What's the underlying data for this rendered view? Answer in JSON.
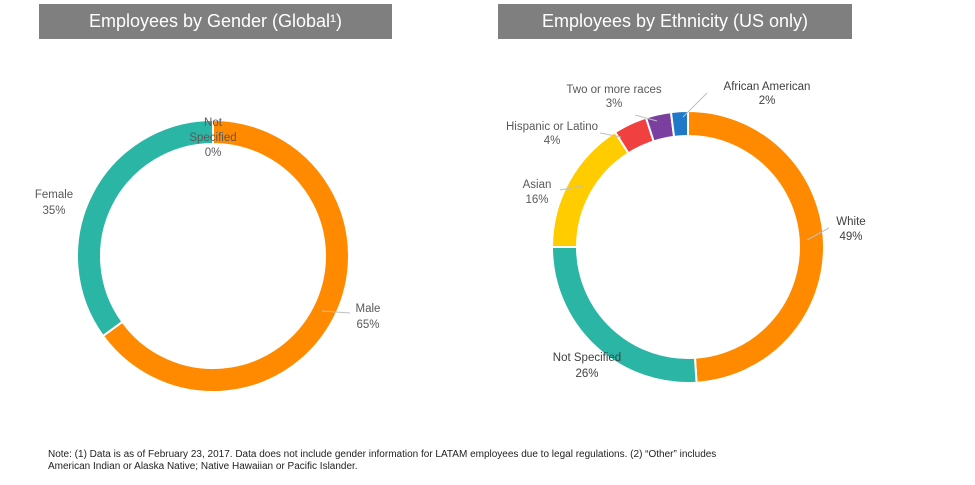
{
  "chart_data": [
    {
      "type": "pie",
      "title": "Employees by Gender (Global¹)",
      "slices": [
        {
          "label": "Not Specified",
          "value": 0,
          "pct_label": "0%",
          "color": "#2ab5a5"
        },
        {
          "label": "Male",
          "value": 65,
          "pct_label": "65%",
          "color": "#ff8a00"
        },
        {
          "label": "Female",
          "value": 35,
          "pct_label": "35%",
          "color": "#2ab5a5"
        }
      ]
    },
    {
      "type": "pie",
      "title": "Employees by Ethnicity (US only)",
      "slices": [
        {
          "label": "White",
          "value": 49,
          "pct_label": "49%",
          "color": "#ff8a00"
        },
        {
          "label": "Not Specified",
          "value": 26,
          "pct_label": "26%",
          "color": "#2ab5a5"
        },
        {
          "label": "Asian",
          "value": 16,
          "pct_label": "16%",
          "color": "#ffcc00"
        },
        {
          "label": "Hispanic or Latino",
          "value": 4,
          "pct_label": "4%",
          "color": "#f04040"
        },
        {
          "label": "Two or more races",
          "value": 3,
          "pct_label": "3%",
          "color": "#7b3fa0"
        },
        {
          "label": "African American",
          "value": 2,
          "pct_label": "2%",
          "color": "#1f78c8"
        }
      ]
    }
  ],
  "footnote": {
    "line1": "Note: (1) Data is as of February 23, 2017. Data does not include gender information for LATAM employees due to legal regulations. (2) “Other” includes",
    "line2": "American Indian or Alaska Native; Native Hawaiian or Pacific Islander."
  }
}
